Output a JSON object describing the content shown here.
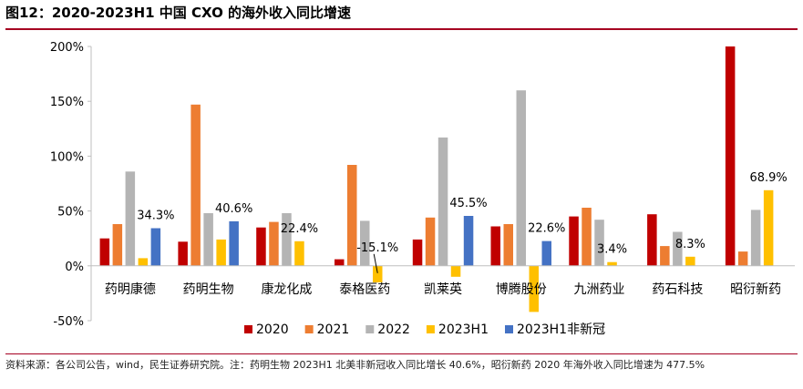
{
  "title": "图12：2020-2023H1 中国 CXO 的海外收入同比增速",
  "source": "资料来源：各公司公告，wind，民生证券研究院。注：药明生物 2023H1 北美非新冠收入同比增长 40.6%，昭衍新药 2020 年海外收入同比增速为 477.5%",
  "chart_data": {
    "type": "bar",
    "categories": [
      "药明康德",
      "药明生物",
      "康龙化成",
      "泰格医药",
      "凯莱英",
      "博腾股份",
      "九洲药业",
      "药石科技",
      "昭衍新药"
    ],
    "series": [
      {
        "name": "2020",
        "color": "#c00000",
        "values": [
          25,
          22,
          35,
          6,
          24,
          36,
          45,
          47,
          200
        ]
      },
      {
        "name": "2021",
        "color": "#ed7d31",
        "values": [
          38,
          147,
          40,
          92,
          44,
          38,
          53,
          18,
          13
        ]
      },
      {
        "name": "2022",
        "color": "#b4b4b4",
        "values": [
          86,
          48,
          48,
          41,
          117,
          160,
          42,
          31,
          51
        ]
      },
      {
        "name": "2023H1",
        "color": "#ffc000",
        "values": [
          7,
          24,
          22.4,
          -15.1,
          -10,
          -42,
          3.4,
          8.3,
          68.9
        ]
      },
      {
        "name": "2023H1非新冠",
        "color": "#4472c4",
        "values": [
          34.3,
          40.6,
          null,
          null,
          45.5,
          22.6,
          null,
          null,
          null
        ]
      }
    ],
    "data_labels": [
      {
        "category": "药明康德",
        "text": "34.3%"
      },
      {
        "category": "药明生物",
        "text": "40.6%"
      },
      {
        "category": "康龙化成",
        "text": "22.4%"
      },
      {
        "category": "泰格医药",
        "text": "-15.1%"
      },
      {
        "category": "凯莱英",
        "text": "45.5%"
      },
      {
        "category": "博腾股份",
        "text": "22.6%"
      },
      {
        "category": "九洲药业",
        "text": "3.4%"
      },
      {
        "category": "药石科技",
        "text": "8.3%"
      },
      {
        "category": "昭衍新药",
        "text": "68.9%"
      }
    ],
    "ylim": [
      -50,
      200
    ],
    "yticks": [
      -50,
      0,
      50,
      100,
      150,
      200
    ],
    "ytick_labels": [
      "-50%",
      "0%",
      "50%",
      "100%",
      "150%",
      "200%"
    ],
    "legend_position": "bottom",
    "grid": false
  }
}
